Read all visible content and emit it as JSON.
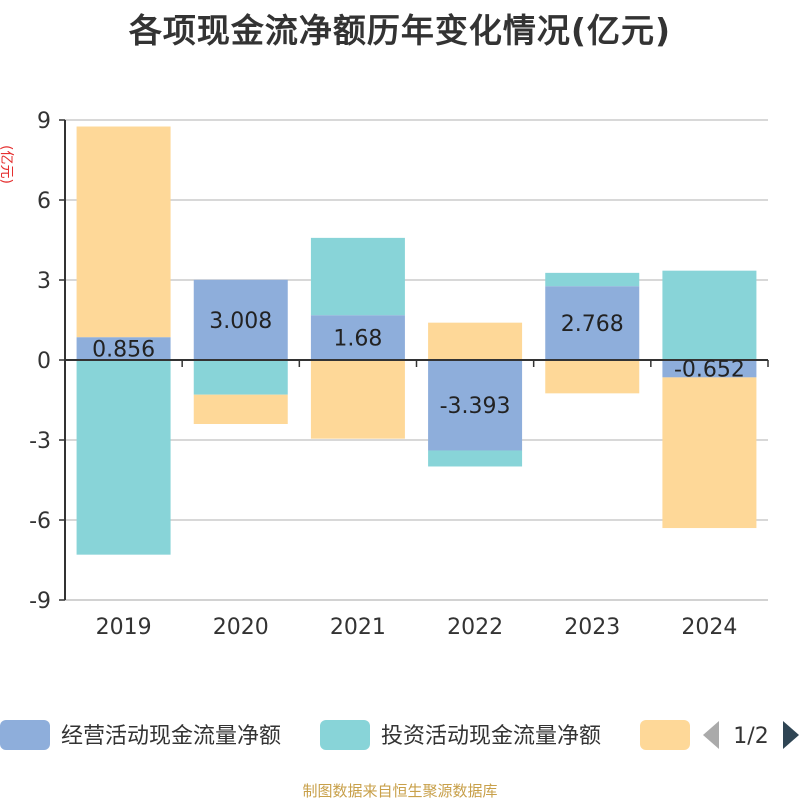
{
  "chart_data": {
    "type": "bar",
    "stacked": true,
    "title": "各项现金流净额历年变化情况(亿元)",
    "ylabel": "(亿元)",
    "ylim": [
      -9,
      9
    ],
    "yticks": [
      9,
      6,
      3,
      0,
      -3,
      -6,
      -9
    ],
    "categories": [
      "2019",
      "2020",
      "2021",
      "2022",
      "2023",
      "2024"
    ],
    "grid": true,
    "legend_position": "bottom",
    "series": [
      {
        "name": "经营活动现金流量净额",
        "color": "#8eaedb",
        "values": [
          0.856,
          3.008,
          1.68,
          -3.393,
          2.768,
          -0.652
        ],
        "labels": [
          "0.856",
          "3.008",
          "1.68",
          "-3.393",
          "2.768",
          "-0.652"
        ]
      },
      {
        "name": "投资活动现金流量净额",
        "color": "#88d4d8",
        "values": [
          -7.3,
          -1.3,
          2.9,
          -0.6,
          0.5,
          3.35
        ]
      },
      {
        "name": "",
        "color": "#fed898",
        "values": [
          7.9,
          -1.1,
          -2.95,
          1.4,
          -1.25,
          -5.65
        ]
      }
    ]
  },
  "legend": {
    "page_indicator": "1/2",
    "prev_icon": "triangle-left-icon",
    "next_icon": "triangle-right-icon"
  },
  "footer": {
    "source": "制图数据来自恒生聚源数据库"
  }
}
